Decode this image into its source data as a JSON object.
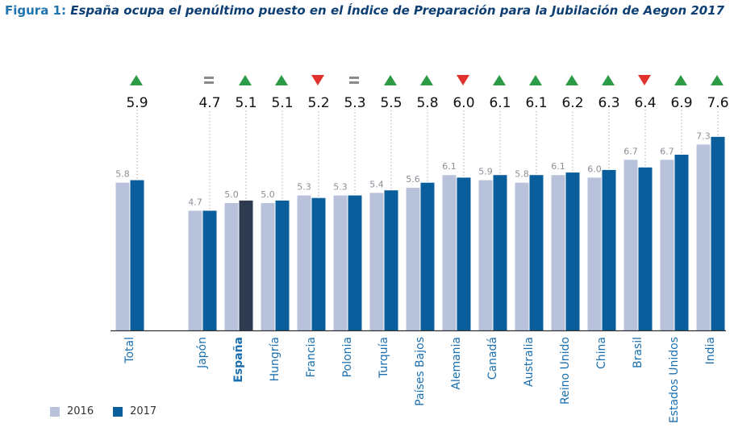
{
  "title": {
    "label": "Figura 1:",
    "text": "España ocupa el penúltimo puesto en el Índice de Preparación para la Jubilación de Aegon 2017"
  },
  "chart_data": {
    "type": "bar",
    "categories": [
      "Total",
      "Japón",
      "España",
      "Hungría",
      "Francia",
      "Polonia",
      "Turquía",
      "Países Bajos",
      "Alemania",
      "Canadá",
      "Australia",
      "Reino Unido",
      "China",
      "Brasil",
      "Estados Unidos",
      "India"
    ],
    "highlight_category": "España",
    "series": [
      {
        "name": "2016",
        "values": [
          5.8,
          4.7,
          5.0,
          5.0,
          5.3,
          5.3,
          5.4,
          5.6,
          6.1,
          5.9,
          5.8,
          6.1,
          6.0,
          6.7,
          6.7,
          7.3
        ]
      },
      {
        "name": "2017",
        "values": [
          5.9,
          4.7,
          5.1,
          5.1,
          5.2,
          5.3,
          5.5,
          5.8,
          6.0,
          6.1,
          6.1,
          6.2,
          6.3,
          6.4,
          6.9,
          7.6
        ]
      }
    ],
    "top_labels": [
      "5.9",
      "4.7",
      "5.1",
      "5.1",
      "5.2",
      "5.3",
      "5.5",
      "5.8",
      "6.0",
      "6.1",
      "6.1",
      "6.2",
      "6.3",
      "6.4",
      "6.9",
      "7.6"
    ],
    "trend_markers": [
      "up",
      "equal",
      "up",
      "up",
      "down",
      "equal",
      "up",
      "up",
      "down",
      "up",
      "up",
      "up",
      "up",
      "down",
      "up",
      "up"
    ],
    "ylim": [
      0,
      8
    ],
    "xlabel": "",
    "ylabel": ""
  },
  "legend": {
    "items": [
      {
        "label": "2016"
      },
      {
        "label": "2017"
      }
    ]
  },
  "colors": {
    "series_2016": "#b8c3db",
    "series_2017": "#0a5e9c",
    "highlight_2017": "#2e3a4f",
    "up": "#2d9a46",
    "down": "#e0322c",
    "equal": "#8a8a8a",
    "category_label": "#1a6fb0",
    "value_2016": "#8a8f96",
    "value_2017": "#111111",
    "axis": "#333333",
    "leader": "#aaaaaa"
  }
}
